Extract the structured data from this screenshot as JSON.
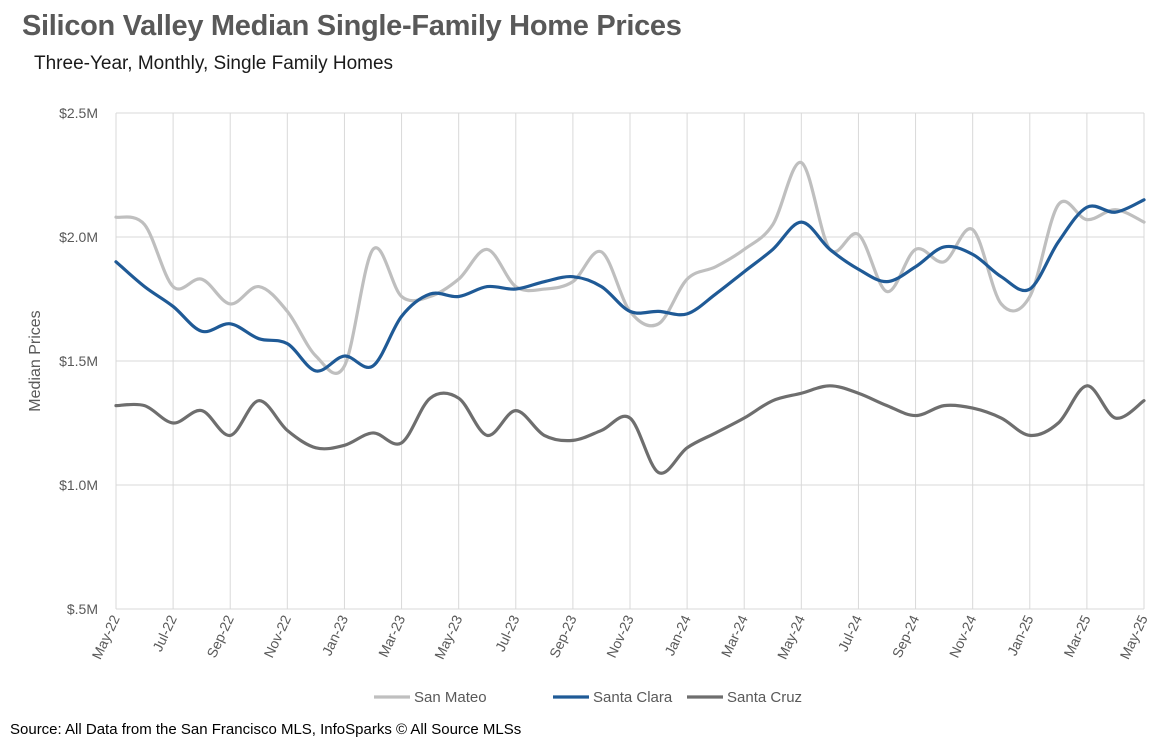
{
  "title": "Silicon Valley Median Single-Family Home Prices",
  "subtitle": "Three-Year, Monthly, Single Family Homes",
  "source": "Source: All Data from the San Francisco MLS, InfoSparks © All Source MLSs",
  "chart_data": {
    "type": "line",
    "title": "Silicon Valley Median Single-Family Home Prices",
    "subtitle": "Three-Year, Monthly, Single Family Homes",
    "xlabel": "",
    "ylabel": "Median Prices",
    "ylim": [
      0.5,
      2.5
    ],
    "y_unit": "millions USD",
    "y_ticks": [
      0.5,
      1.0,
      1.5,
      2.0,
      2.5
    ],
    "y_tick_labels": [
      "$.5M",
      "$1.0M",
      "$1.5M",
      "$2.0M",
      "$2.5M"
    ],
    "grid": true,
    "legend_position": "bottom",
    "x": [
      "May-22",
      "Jun-22",
      "Jul-22",
      "Aug-22",
      "Sep-22",
      "Oct-22",
      "Nov-22",
      "Dec-22",
      "Jan-23",
      "Feb-23",
      "Mar-23",
      "Apr-23",
      "May-23",
      "Jun-23",
      "Jul-23",
      "Aug-23",
      "Sep-23",
      "Oct-23",
      "Nov-23",
      "Dec-23",
      "Jan-24",
      "Feb-24",
      "Mar-24",
      "Apr-24",
      "May-24",
      "Jun-24",
      "Jul-24",
      "Aug-24",
      "Sep-24",
      "Oct-24",
      "Nov-24",
      "Dec-24",
      "Jan-25",
      "Feb-25",
      "Mar-25",
      "Apr-25",
      "May-25"
    ],
    "x_tick_labels": [
      "May-22",
      "Jul-22",
      "Sep-22",
      "Nov-22",
      "Jan-23",
      "Mar-23",
      "May-23",
      "Jul-23",
      "Sep-23",
      "Nov-23",
      "Jan-24",
      "Mar-24",
      "May-24",
      "Jul-24",
      "Sep-24",
      "Nov-24",
      "Jan-25",
      "Mar-25",
      "May-25"
    ],
    "series": [
      {
        "name": "San Mateo",
        "color": "#bfbfbf",
        "values": [
          2.08,
          2.05,
          1.8,
          1.83,
          1.73,
          1.8,
          1.7,
          1.52,
          1.48,
          1.95,
          1.76,
          1.76,
          1.83,
          1.95,
          1.8,
          1.79,
          1.82,
          1.94,
          1.7,
          1.65,
          1.83,
          1.88,
          1.95,
          2.05,
          2.3,
          1.95,
          2.01,
          1.78,
          1.95,
          1.9,
          2.03,
          1.73,
          1.76,
          2.13,
          2.07,
          2.11,
          2.06
        ]
      },
      {
        "name": "Santa Clara",
        "color": "#1f5a96",
        "values": [
          1.9,
          1.8,
          1.72,
          1.62,
          1.65,
          1.59,
          1.57,
          1.46,
          1.52,
          1.48,
          1.68,
          1.77,
          1.76,
          1.8,
          1.79,
          1.82,
          1.84,
          1.8,
          1.7,
          1.7,
          1.69,
          1.77,
          1.86,
          1.95,
          2.06,
          1.95,
          1.87,
          1.82,
          1.88,
          1.96,
          1.93,
          1.84,
          1.79,
          1.98,
          2.12,
          2.1,
          2.15
        ]
      },
      {
        "name": "Santa Cruz",
        "color": "#6e6e6e",
        "values": [
          1.32,
          1.32,
          1.25,
          1.3,
          1.2,
          1.34,
          1.22,
          1.15,
          1.16,
          1.21,
          1.17,
          1.35,
          1.35,
          1.2,
          1.3,
          1.2,
          1.18,
          1.22,
          1.27,
          1.05,
          1.15,
          1.21,
          1.27,
          1.34,
          1.37,
          1.4,
          1.37,
          1.32,
          1.28,
          1.32,
          1.31,
          1.27,
          1.2,
          1.25,
          1.4,
          1.27,
          1.34
        ]
      }
    ]
  }
}
